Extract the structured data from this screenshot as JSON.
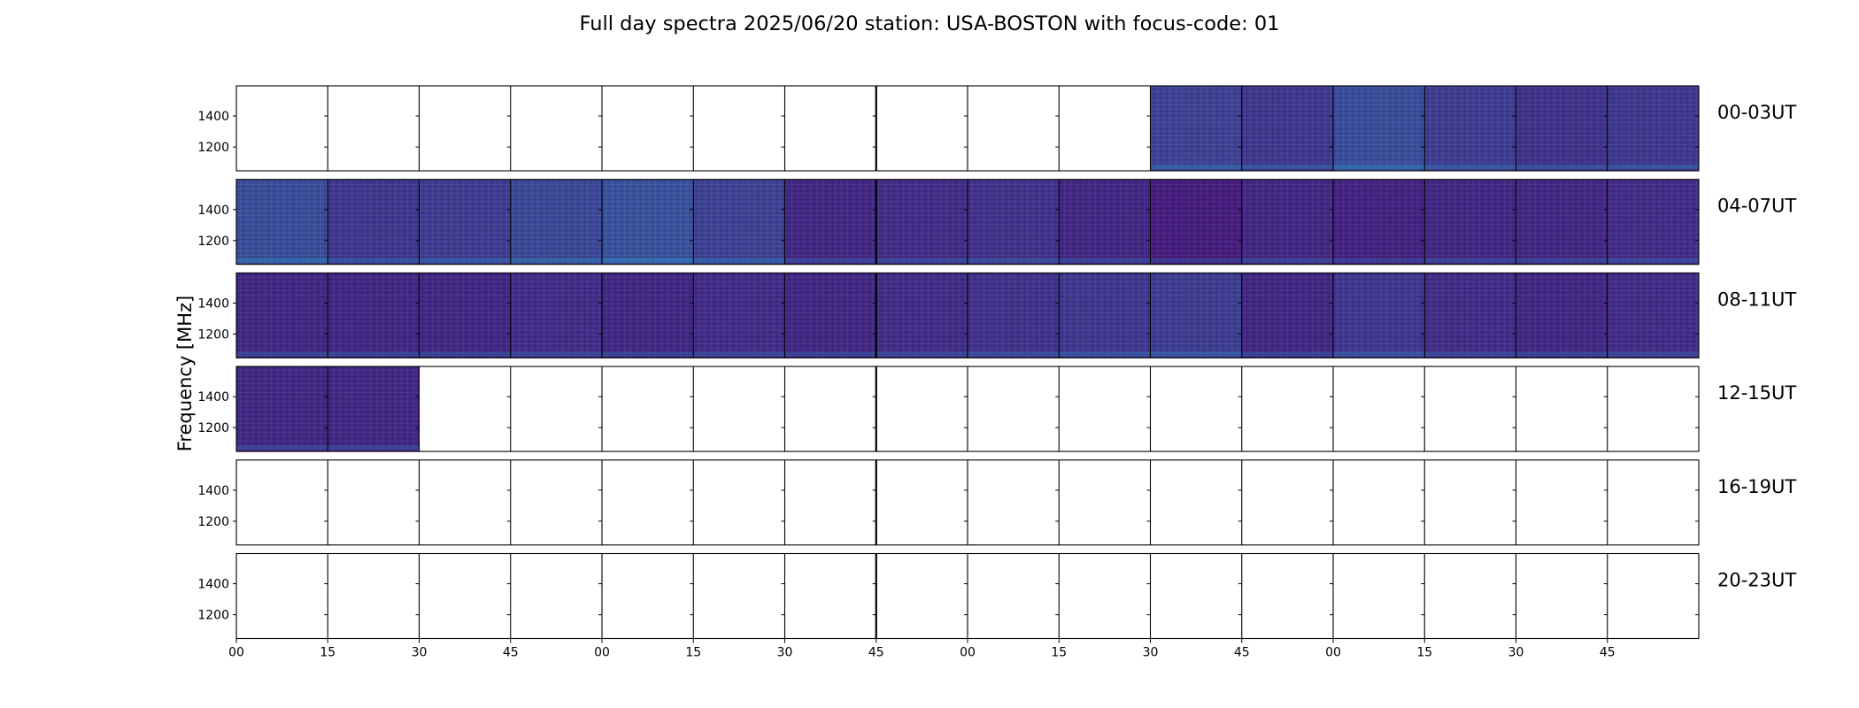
{
  "chart_data": {
    "type": "heatmap",
    "title": "Full day spectra 2025/06/20 station: USA-BOSTON with focus-code: 01",
    "ylabel": "Frequency [MHz]",
    "xlabel": "",
    "y_ticks": [
      "1400",
      "1200"
    ],
    "x_ticks": [
      "00",
      "15",
      "30",
      "45",
      "00",
      "15",
      "30",
      "45",
      "00",
      "15",
      "30",
      "45",
      "00",
      "15",
      "30",
      "45"
    ],
    "colormap": "viridis",
    "bright_color": "#2f7db8",
    "dark_color": "#48127a",
    "empty_color": "#ffffff",
    "rows": [
      {
        "label": "00-03UT",
        "levels": [
          null,
          null,
          null,
          null,
          null,
          null,
          null,
          null,
          null,
          null,
          0.45,
          0.35,
          0.55,
          0.4,
          0.3,
          0.35
        ]
      },
      {
        "label": "04-07UT",
        "levels": [
          0.55,
          0.35,
          0.4,
          0.5,
          0.6,
          0.45,
          0.2,
          0.25,
          0.3,
          0.2,
          0.1,
          0.2,
          0.15,
          0.2,
          0.2,
          0.25
        ]
      },
      {
        "label": "08-11UT",
        "levels": [
          0.2,
          0.2,
          0.2,
          0.25,
          0.2,
          0.25,
          0.2,
          0.25,
          0.3,
          0.35,
          0.4,
          0.2,
          0.35,
          0.25,
          0.2,
          0.25
        ]
      },
      {
        "label": "12-15UT",
        "levels": [
          0.2,
          0.2,
          null,
          null,
          null,
          null,
          null,
          null,
          null,
          null,
          null,
          null,
          null,
          null,
          null,
          null
        ]
      },
      {
        "label": "16-19UT",
        "levels": [
          null,
          null,
          null,
          null,
          null,
          null,
          null,
          null,
          null,
          null,
          null,
          null,
          null,
          null,
          null,
          null
        ]
      },
      {
        "label": "20-23UT",
        "levels": [
          null,
          null,
          null,
          null,
          null,
          null,
          null,
          null,
          null,
          null,
          null,
          null,
          null,
          null,
          null,
          null
        ]
      }
    ]
  }
}
